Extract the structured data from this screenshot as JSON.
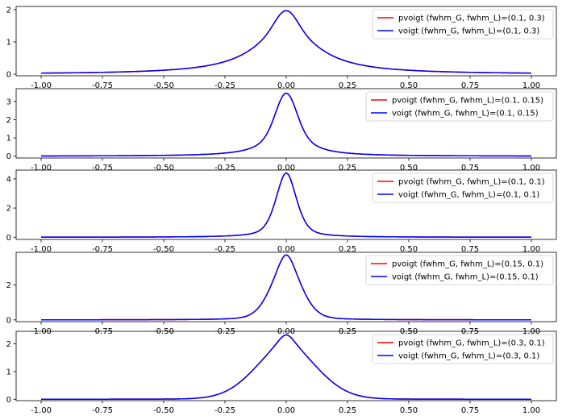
{
  "colors": {
    "pvoigt": "#ff0000",
    "voigt": "#0000ff",
    "axes": "#000000",
    "legend_border": "#cccccc"
  },
  "chart_data": [
    {
      "type": "line",
      "xlim": [
        -1.0,
        1.0
      ],
      "ylim": [
        -0.05,
        2.1
      ],
      "x_ticks": [
        "-1.00",
        "-0.75",
        "-0.50",
        "-0.25",
        "0.00",
        "0.25",
        "0.50",
        "0.75",
        "1.00"
      ],
      "y_ticks": [
        "0",
        "1",
        "2"
      ],
      "legend_position": "upper-right",
      "grid": false,
      "fwhm_G": 0.1,
      "fwhm_L": 0.3,
      "series": [
        {
          "name": "pvoigt (fwhm_G, fwhm_L)=(0.1, 0.3)",
          "color": "#ff0000",
          "x": [
            -1,
            -0.75,
            -0.5,
            -0.25,
            -0.15,
            0,
            0.15,
            0.25,
            0.5,
            0.75,
            1
          ],
          "y": [
            0.05,
            0.09,
            0.19,
            0.62,
            1.18,
            1.97,
            1.18,
            0.62,
            0.19,
            0.09,
            0.05
          ]
        },
        {
          "name": "voigt (fwhm_G, fwhm_L)=(0.1, 0.3)",
          "color": "#0000ff",
          "x": [
            -1,
            -0.75,
            -0.5,
            -0.25,
            -0.15,
            0,
            0.15,
            0.25,
            0.5,
            0.75,
            1
          ],
          "y": [
            0.05,
            0.09,
            0.19,
            0.62,
            1.18,
            1.97,
            1.18,
            0.62,
            0.19,
            0.09,
            0.05
          ]
        }
      ]
    },
    {
      "type": "line",
      "xlim": [
        -1.0,
        1.0
      ],
      "ylim": [
        -0.1,
        3.7
      ],
      "x_ticks": [
        "-1.00",
        "-0.75",
        "-0.50",
        "-0.25",
        "0.00",
        "0.25",
        "0.50",
        "0.75",
        "1.00"
      ],
      "y_ticks": [
        "0",
        "1",
        "2",
        "3"
      ],
      "legend_position": "upper-right",
      "grid": false,
      "fwhm_G": 0.1,
      "fwhm_L": 0.15,
      "series": [
        {
          "name": "pvoigt (fwhm_G, fwhm_L)=(0.1, 0.15)",
          "color": "#ff0000",
          "x": [
            -1,
            -0.5,
            -0.25,
            -0.1,
            0,
            0.1,
            0.25,
            0.5,
            1
          ],
          "y": [
            0.02,
            0.1,
            0.35,
            1.8,
            3.45,
            1.8,
            0.35,
            0.1,
            0.02
          ]
        },
        {
          "name": "voigt (fwhm_G, fwhm_L)=(0.1, 0.15)",
          "color": "#0000ff",
          "x": [
            -1,
            -0.5,
            -0.25,
            -0.1,
            0,
            0.1,
            0.25,
            0.5,
            1
          ],
          "y": [
            0.02,
            0.1,
            0.35,
            1.8,
            3.45,
            1.8,
            0.35,
            0.1,
            0.02
          ]
        }
      ]
    },
    {
      "type": "line",
      "xlim": [
        -1.0,
        1.0
      ],
      "ylim": [
        -0.15,
        4.6
      ],
      "x_ticks": [
        "-1.00",
        "-0.75",
        "-0.50",
        "-0.25",
        "0.00",
        "0.25",
        "0.50",
        "0.75",
        "1.00"
      ],
      "y_ticks": [
        "0",
        "2",
        "4"
      ],
      "legend_position": "upper-right",
      "grid": false,
      "fwhm_G": 0.1,
      "fwhm_L": 0.1,
      "series": [
        {
          "name": "pvoigt (fwhm_G, fwhm_L)=(0.1, 0.1)",
          "color": "#ff0000",
          "x": [
            -1,
            -0.5,
            -0.25,
            -0.08,
            0,
            0.08,
            0.25,
            0.5,
            1
          ],
          "y": [
            0.02,
            0.07,
            0.3,
            2.2,
            4.4,
            2.2,
            0.3,
            0.07,
            0.02
          ]
        },
        {
          "name": "voigt (fwhm_G, fwhm_L)=(0.1, 0.1)",
          "color": "#0000ff",
          "x": [
            -1,
            -0.5,
            -0.25,
            -0.08,
            0,
            0.08,
            0.25,
            0.5,
            1
          ],
          "y": [
            0.02,
            0.07,
            0.3,
            2.2,
            4.4,
            2.2,
            0.3,
            0.07,
            0.02
          ]
        }
      ]
    },
    {
      "type": "line",
      "xlim": [
        -1.0,
        1.0
      ],
      "ylim": [
        -0.1,
        3.85
      ],
      "x_ticks": [
        "-1.00",
        "-0.75",
        "-0.50",
        "-0.25",
        "0.00",
        "0.25",
        "0.50",
        "0.75",
        "1.00"
      ],
      "y_ticks": [
        "0",
        "2"
      ],
      "legend_position": "upper-right",
      "grid": false,
      "fwhm_G": 0.15,
      "fwhm_L": 0.1,
      "series": [
        {
          "name": "pvoigt (fwhm_G, fwhm_L)=(0.15, 0.1)",
          "color": "#ff0000",
          "x": [
            -1,
            -0.5,
            -0.25,
            -0.1,
            0,
            0.1,
            0.25,
            0.5,
            1
          ],
          "y": [
            0.02,
            0.08,
            0.32,
            1.9,
            3.7,
            1.9,
            0.32,
            0.08,
            0.02
          ]
        },
        {
          "name": "voigt (fwhm_G, fwhm_L)=(0.15, 0.1)",
          "color": "#0000ff",
          "x": [
            -1,
            -0.5,
            -0.25,
            -0.1,
            0,
            0.1,
            0.25,
            0.5,
            1
          ],
          "y": [
            0.02,
            0.08,
            0.32,
            1.9,
            3.7,
            1.9,
            0.32,
            0.08,
            0.02
          ]
        }
      ]
    },
    {
      "type": "line",
      "xlim": [
        -1.0,
        1.0
      ],
      "ylim": [
        -0.05,
        2.45
      ],
      "x_ticks": [
        "-1.00",
        "-0.75",
        "-0.50",
        "-0.25",
        "0.00",
        "0.25",
        "0.50",
        "0.75",
        "1.00"
      ],
      "y_ticks": [
        "0",
        "1",
        "2"
      ],
      "legend_position": "upper-right",
      "grid": false,
      "fwhm_G": 0.3,
      "fwhm_L": 0.1,
      "series": [
        {
          "name": "pvoigt (fwhm_G, fwhm_L)=(0.3, 0.1)",
          "color": "#ff0000",
          "x": [
            -1,
            -0.5,
            -0.25,
            -0.15,
            0,
            0.15,
            0.25,
            0.5,
            1
          ],
          "y": [
            0.02,
            0.07,
            0.55,
            1.4,
            2.32,
            1.4,
            0.55,
            0.07,
            0.02
          ]
        },
        {
          "name": "voigt (fwhm_G, fwhm_L)=(0.3, 0.1)",
          "color": "#0000ff",
          "x": [
            -1,
            -0.5,
            -0.25,
            -0.15,
            0,
            0.15,
            0.25,
            0.5,
            1
          ],
          "y": [
            0.02,
            0.07,
            0.55,
            1.4,
            2.32,
            1.4,
            0.55,
            0.07,
            0.02
          ]
        }
      ]
    }
  ]
}
